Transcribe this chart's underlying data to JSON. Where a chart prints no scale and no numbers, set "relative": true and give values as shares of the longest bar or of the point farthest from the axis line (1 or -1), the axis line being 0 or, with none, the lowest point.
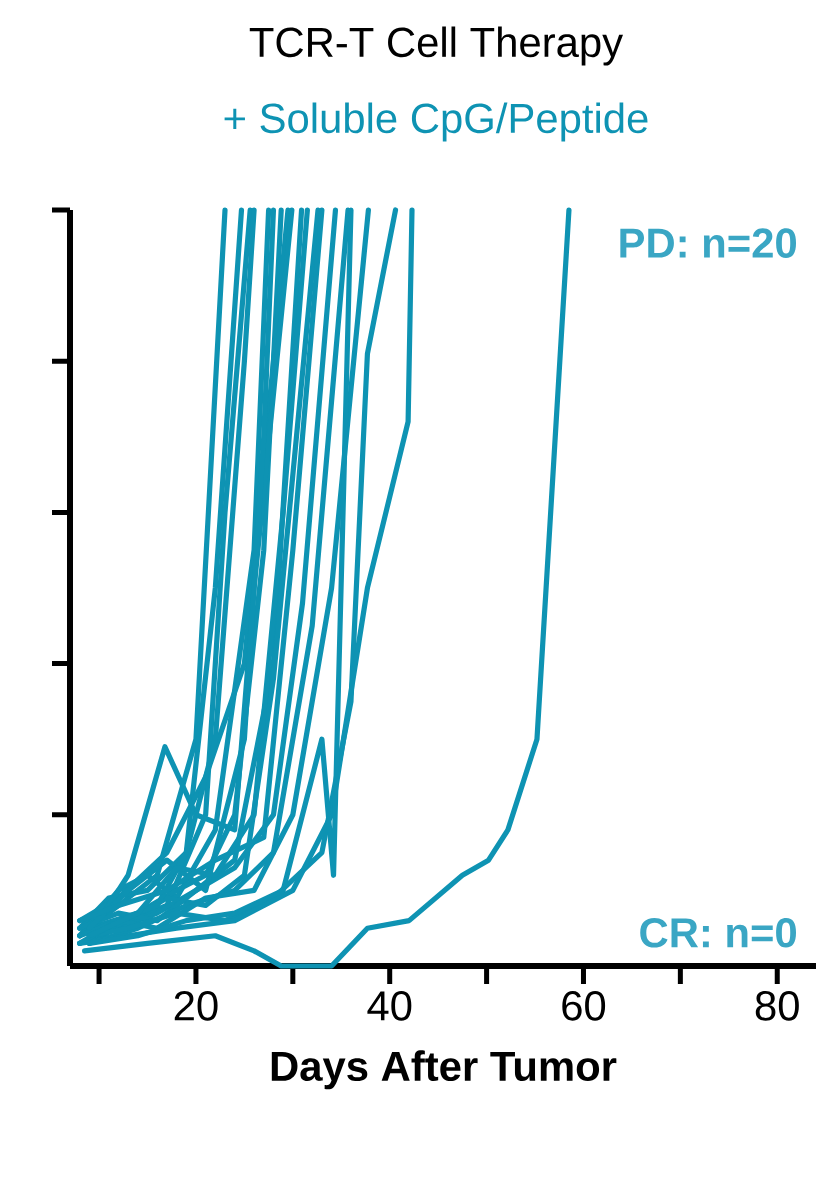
{
  "chart_data": {
    "type": "line",
    "title": "TCR-T Cell Therapy",
    "subtitle": "+ Soluble CpG/Peptide",
    "xlabel": "Days After Tumor",
    "annotations": [
      "PD: n=20",
      "CR: n=0"
    ],
    "relative": true,
    "grid": false,
    "marker": "none",
    "line_style": "solid",
    "tick_labels": "x",
    "xlim": [
      7,
      84
    ],
    "xticks": [
      {
        "value": 10,
        "label": null
      },
      20,
      {
        "value": 30,
        "label": null
      },
      40,
      {
        "value": 50,
        "label": null
      },
      60,
      {
        "value": 70,
        "label": null
      },
      80
    ],
    "series": [
      {
        "color": "#0e93b3",
        "x": [
          8,
          12,
          16,
          20,
          23
        ],
        "values": [
          0.04,
          0.08,
          0.12,
          0.3,
          1
        ]
      },
      {
        "color": "#0e93b3",
        "x": [
          8,
          11,
          15,
          19,
          22,
          24.7
        ],
        "values": [
          0.05,
          0.09,
          0.1,
          0.15,
          0.5,
          1
        ]
      },
      {
        "color": "#0e93b3",
        "x": [
          9,
          13,
          17,
          21,
          23,
          25.6
        ],
        "values": [
          0.03,
          0.06,
          0.08,
          0.2,
          0.6,
          1
        ]
      },
      {
        "color": "#0e93b3",
        "x": [
          8,
          12,
          15,
          18,
          22,
          26,
          27.5
        ],
        "values": [
          0.04,
          0.1,
          0.12,
          0.09,
          0.18,
          0.55,
          1
        ]
      },
      {
        "color": "#0e93b3",
        "x": [
          9,
          14,
          18,
          21,
          24,
          27,
          28.8
        ],
        "values": [
          0.05,
          0.07,
          0.1,
          0.12,
          0.2,
          0.55,
          1
        ]
      },
      {
        "color": "#0e93b3",
        "x": [
          8,
          12,
          17,
          21,
          25,
          29.5
        ],
        "values": [
          0.06,
          0.09,
          0.15,
          0.25,
          0.4,
          1
        ]
      },
      {
        "color": "#0e93b3",
        "x": [
          9,
          13,
          16.8,
          20,
          24,
          26,
          29.9
        ],
        "values": [
          0.04,
          0.12,
          0.29,
          0.2,
          0.18,
          0.5,
          1
        ]
      },
      {
        "color": "#0e93b3",
        "x": [
          8,
          12,
          16,
          20,
          24,
          28,
          30.9
        ],
        "values": [
          0.03,
          0.05,
          0.07,
          0.1,
          0.14,
          0.4,
          1
        ]
      },
      {
        "color": "#0e93b3",
        "x": [
          9,
          13,
          17,
          21,
          25,
          28,
          32.6
        ],
        "values": [
          0.04,
          0.06,
          0.09,
          0.08,
          0.12,
          0.38,
          1
        ]
      },
      {
        "color": "#0e93b3",
        "x": [
          8,
          12,
          16,
          20,
          24,
          28,
          31,
          34.4
        ],
        "values": [
          0.05,
          0.07,
          0.06,
          0.1,
          0.13,
          0.2,
          0.48,
          1
        ]
      },
      {
        "color": "#0e93b3",
        "x": [
          9,
          14,
          19,
          24,
          28,
          32,
          35.7
        ],
        "values": [
          0.03,
          0.05,
          0.08,
          0.1,
          0.15,
          0.45,
          1
        ]
      },
      {
        "color": "#0e93b3",
        "x": [
          8,
          12,
          16,
          21,
          26,
          30,
          34,
          37.8
        ],
        "values": [
          0.04,
          0.06,
          0.05,
          0.09,
          0.1,
          0.2,
          0.5,
          1
        ]
      },
      {
        "color": "#0e93b3",
        "x": [
          9,
          13,
          18,
          23,
          28,
          33,
          36,
          37.7,
          40.6
        ],
        "values": [
          0.04,
          0.05,
          0.07,
          0.06,
          0.09,
          0.15,
          0.35,
          0.81,
          1
        ]
      },
      {
        "color": "#0e93b3",
        "x": [
          8,
          13,
          18,
          24,
          30,
          34,
          37.7,
          41.9,
          42.3
        ],
        "values": [
          0.03,
          0.04,
          0.05,
          0.06,
          0.1,
          0.2,
          0.5,
          0.72,
          1
        ]
      },
      {
        "color": "#0e93b3",
        "x": [
          8.5,
          15,
          22,
          26,
          28.8,
          34,
          37.7,
          42,
          47.5,
          50.2,
          52.2,
          55.2,
          58.5
        ],
        "values": [
          0.02,
          0.03,
          0.04,
          0.02,
          0,
          0,
          0.05,
          0.06,
          0.12,
          0.14,
          0.18,
          0.3,
          1
        ]
      },
      {
        "color": "#0e93b3",
        "x": [
          9,
          13,
          17,
          21,
          25,
          27,
          28
        ],
        "values": [
          0.05,
          0.1,
          0.14,
          0.1,
          0.3,
          0.7,
          1
        ]
      },
      {
        "color": "#0e93b3",
        "x": [
          8,
          12,
          16,
          19,
          22,
          25,
          26
        ],
        "values": [
          0.03,
          0.06,
          0.08,
          0.15,
          0.3,
          0.8,
          1
        ]
      },
      {
        "color": "#0e93b3",
        "x": [
          9,
          14,
          18,
          22,
          26,
          29,
          31.5
        ],
        "values": [
          0.04,
          0.07,
          0.13,
          0.12,
          0.2,
          0.6,
          1
        ]
      },
      {
        "color": "#0e93b3",
        "x": [
          8,
          12,
          17,
          22,
          27,
          30,
          33
        ],
        "values": [
          0.06,
          0.08,
          0.1,
          0.14,
          0.17,
          0.55,
          1
        ]
      },
      {
        "color": "#0e93b3",
        "x": [
          9,
          14,
          19,
          24,
          29,
          33,
          34.2,
          36
        ],
        "values": [
          0.03,
          0.04,
          0.06,
          0.07,
          0.1,
          0.3,
          0.12,
          1
        ]
      }
    ]
  }
}
